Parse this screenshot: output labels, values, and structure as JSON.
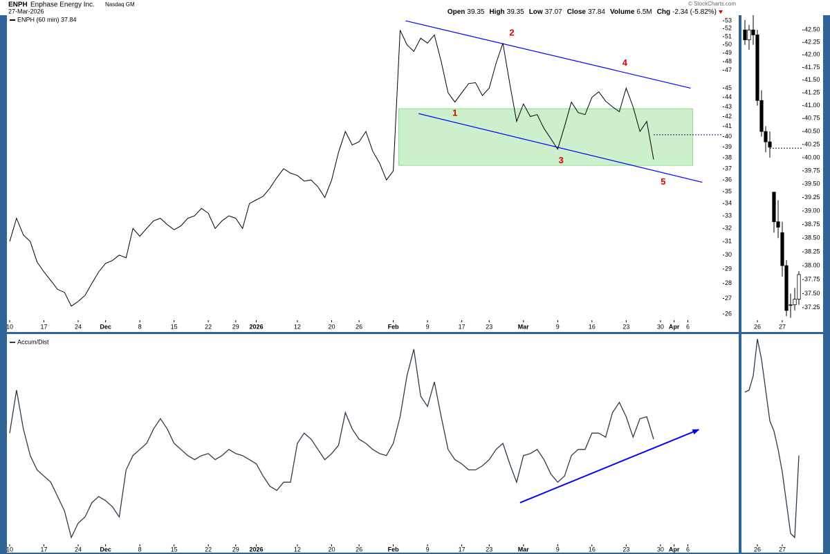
{
  "header": {
    "symbol": "ENPH",
    "name": "Enphase Energy Inc.",
    "exchange": "Nasdaq GM",
    "date": "27-Mar-2026",
    "copyright": "© StockCharts.com",
    "quote": [
      {
        "label": "Open",
        "value": "39.35"
      },
      {
        "label": "High",
        "value": "39.35"
      },
      {
        "label": "Low",
        "value": "37.07"
      },
      {
        "label": "Close",
        "value": "37.84"
      },
      {
        "label": "Volume",
        "value": "6.5M"
      },
      {
        "label": "Chg",
        "value": "-2.34 (-5.82%)"
      }
    ]
  },
  "chart_data": [
    {
      "type": "line",
      "log": true,
      "xlim": [
        -0.4,
        104.1
      ],
      "ylim": [
        25.65,
        53.54
      ],
      "x": [
        0,
        1,
        2,
        3,
        4,
        5,
        6,
        7,
        8,
        9,
        10,
        11,
        12,
        13,
        14,
        15,
        16,
        17,
        18,
        19,
        20,
        21,
        22,
        23,
        24,
        25,
        26,
        27,
        28,
        29,
        30,
        31,
        32,
        33,
        34,
        35,
        36,
        37,
        38,
        39,
        40,
        41,
        42,
        43,
        44,
        45,
        46,
        47,
        48,
        49,
        50,
        51,
        52,
        53,
        54,
        55,
        56,
        57,
        58,
        59,
        60,
        61,
        62,
        63,
        64,
        65,
        66,
        67,
        68,
        69,
        70,
        71,
        72,
        73,
        74,
        75,
        76,
        77,
        78,
        79,
        80,
        81,
        82,
        83,
        84,
        85,
        86,
        87,
        88,
        89,
        90,
        91,
        92,
        93,
        94
      ],
      "series": [
        {
          "name": "ENPH (60 min) 37.84",
          "color": "#000000",
          "values": [
            31.0,
            32.8,
            31.5,
            31.0,
            29.5,
            28.8,
            28.2,
            27.6,
            27.4,
            26.5,
            26.8,
            27.2,
            28.0,
            28.8,
            29.4,
            29.6,
            30.0,
            29.8,
            32.0,
            31.4,
            32.0,
            32.6,
            32.8,
            32.3,
            31.9,
            32.2,
            32.8,
            33.0,
            33.6,
            33.2,
            32.0,
            32.6,
            33.0,
            32.8,
            32.0,
            34.0,
            34.3,
            34.6,
            35.3,
            36.2,
            37.0,
            36.6,
            36.4,
            35.9,
            36.0,
            35.4,
            34.5,
            36.0,
            38.5,
            40.5,
            39.2,
            39.5,
            40.5,
            38.6,
            37.5,
            36.0,
            36.8,
            51.8,
            50.0,
            49.2,
            50.8,
            50.2,
            51.2,
            48.0,
            44.5,
            43.5,
            44.5,
            45.5,
            45.6,
            44.2,
            45.0,
            47.8,
            50.2,
            45.5,
            41.5,
            43.3,
            42.0,
            42.2,
            40.8,
            39.8,
            38.8,
            41.0,
            43.5,
            42.4,
            42.2,
            44.0,
            44.6,
            43.6,
            43.0,
            42.5,
            45.0,
            43.0,
            40.5,
            41.5,
            37.84
          ]
        }
      ],
      "xticks": [
        {
          "value": 0,
          "label": "10"
        },
        {
          "value": 5,
          "label": "17"
        },
        {
          "value": 10,
          "label": "24"
        },
        {
          "value": 14,
          "label": "Dec"
        },
        {
          "value": 19,
          "label": "8"
        },
        {
          "value": 24,
          "label": "15"
        },
        {
          "value": 29,
          "label": "22"
        },
        {
          "value": 33,
          "label": "29"
        },
        {
          "value": 36,
          "label": "2026"
        },
        {
          "value": 42,
          "label": "12"
        },
        {
          "value": 47,
          "label": "20"
        },
        {
          "value": 51,
          "label": "26"
        },
        {
          "value": 56,
          "label": "Feb"
        },
        {
          "value": 61,
          "label": "9"
        },
        {
          "value": 66,
          "label": "17"
        },
        {
          "value": 70,
          "label": "23"
        },
        {
          "value": 75,
          "label": "Mar"
        },
        {
          "value": 80,
          "label": "9"
        },
        {
          "value": 85,
          "label": "16"
        },
        {
          "value": 90,
          "label": "23"
        },
        {
          "value": 95,
          "label": "30"
        },
        {
          "value": 97,
          "label": "Apr"
        },
        {
          "value": 99,
          "label": "6"
        }
      ],
      "yticks": [
        26,
        27,
        28,
        29,
        30,
        31,
        32,
        33,
        34,
        35,
        36,
        37,
        38,
        39,
        40,
        41,
        42,
        43,
        44,
        45,
        47,
        48,
        49,
        50,
        51,
        52,
        53
      ],
      "annotations": [
        {
          "text": "1",
          "x": 65,
          "y": 42.3
        },
        {
          "text": "2",
          "x": 73.3,
          "y": 51.4
        },
        {
          "text": "3",
          "x": 80.5,
          "y": 37.7
        },
        {
          "text": "4",
          "x": 89.8,
          "y": 47.8
        },
        {
          "text": "5",
          "x": 95.4,
          "y": 35.8
        }
      ],
      "trendlines": [
        {
          "x": [
            57.8,
            99.4
          ],
          "y": [
            53,
            45.0
          ],
          "color": "#0000ff"
        },
        {
          "x": [
            59.7,
            101.1
          ],
          "y": [
            42.3,
            35.8
          ],
          "color": "#0000ff"
        }
      ],
      "zone": {
        "x": [
          56.8,
          99.7
        ],
        "y": [
          37.3,
          42.8
        ],
        "color": "#8fdc8f"
      },
      "reference": {
        "x": 94,
        "value": 40.18,
        "color": "#000080"
      }
    },
    {
      "type": "candlestick",
      "log": true,
      "xlim": [
        -0.83,
        13.83
      ],
      "ylim": [
        37.04,
        42.77
      ],
      "x": [
        0,
        1,
        2,
        3,
        4,
        5,
        6,
        7,
        8,
        9,
        10,
        11,
        12,
        13
      ],
      "open": [
        42.5,
        42.3,
        42.5,
        42.4,
        41.1,
        40.5,
        40.3,
        39.35,
        38.8,
        38.6,
        38.0,
        37.3,
        37.3,
        37.4
      ],
      "high": [
        42.7,
        42.6,
        42.8,
        42.5,
        41.3,
        40.6,
        40.5,
        39.35,
        39.2,
        38.8,
        38.1,
        37.5,
        37.6,
        37.9
      ],
      "low": [
        42.2,
        42.1,
        42.2,
        41.0,
        40.4,
        40.1,
        40.0,
        38.6,
        38.5,
        37.8,
        37.1,
        37.07,
        37.2,
        37.3
      ],
      "close": [
        42.3,
        42.5,
        42.4,
        41.1,
        40.5,
        40.3,
        40.2,
        38.8,
        38.7,
        38.0,
        37.2,
        37.3,
        37.4,
        37.84
      ],
      "color": "#000000",
      "xticks": [
        {
          "value": 3,
          "label": "26"
        },
        {
          "value": 9,
          "label": "27"
        }
      ],
      "yticks": [
        {
          "value": 42.5,
          "label": "42.50"
        },
        42.25,
        {
          "value": 42,
          "label": "42.00"
        },
        41.75,
        {
          "value": 41.5,
          "label": "41.50"
        },
        41.25,
        {
          "value": 41,
          "label": "41.00"
        },
        40.75,
        {
          "value": 40.5,
          "label": "40.50"
        },
        40.25,
        {
          "value": 40,
          "label": "40.00"
        },
        39.75,
        {
          "value": 39.5,
          "label": "39.50"
        },
        39.25,
        {
          "value": 39,
          "label": "39.00"
        },
        38.75,
        {
          "value": 38.5,
          "label": "38.50"
        },
        38.25,
        {
          "value": 38,
          "label": "38.00"
        },
        37.75,
        {
          "value": 37.5,
          "label": "37.50"
        },
        37.25
      ],
      "reference": {
        "x": 6,
        "value": 40.18,
        "color": "#000080"
      }
    },
    {
      "type": "line",
      "xlim": [
        -0.4,
        104.1
      ],
      "ylim": [
        0,
        100
      ],
      "x": [
        0,
        1,
        2,
        3,
        4,
        5,
        6,
        7,
        8,
        9,
        10,
        11,
        12,
        13,
        14,
        15,
        16,
        17,
        18,
        19,
        20,
        21,
        22,
        23,
        24,
        25,
        26,
        27,
        28,
        29,
        30,
        31,
        32,
        33,
        34,
        35,
        36,
        37,
        38,
        39,
        40,
        41,
        42,
        43,
        44,
        45,
        46,
        47,
        48,
        49,
        50,
        51,
        52,
        53,
        54,
        55,
        56,
        57,
        58,
        59,
        60,
        61,
        62,
        63,
        64,
        65,
        66,
        67,
        68,
        69,
        70,
        71,
        72,
        73,
        74,
        75,
        76,
        77,
        78,
        79,
        80,
        81,
        82,
        83,
        84,
        85,
        86,
        87,
        88,
        89,
        90,
        91,
        92,
        93,
        94
      ],
      "series": [
        {
          "name": "Accum/Dist",
          "color": "#2b3a4a",
          "values": [
            54,
            75,
            56,
            43,
            36,
            33,
            30,
            23,
            16,
            3,
            10,
            13,
            20,
            23,
            21,
            18,
            13,
            36,
            43,
            46,
            49,
            56,
            61,
            56,
            49,
            46,
            43,
            41,
            43,
            44,
            41,
            43,
            46,
            44,
            43,
            41,
            39,
            33,
            28,
            26,
            30,
            30,
            49,
            54,
            51,
            46,
            41,
            44,
            48,
            64,
            56,
            51,
            49,
            46,
            44,
            43,
            49,
            62,
            82,
            95,
            72,
            67,
            79,
            62,
            46,
            41,
            39,
            36,
            36,
            38,
            41,
            46,
            49,
            39,
            30,
            43,
            44,
            46,
            41,
            34,
            30,
            33,
            43,
            46,
            46,
            54,
            54,
            52,
            64,
            69,
            62,
            52,
            61,
            62,
            51
          ]
        }
      ],
      "xticks": [
        {
          "value": 0,
          "label": "10"
        },
        {
          "value": 5,
          "label": "17"
        },
        {
          "value": 10,
          "label": "24"
        },
        {
          "value": 14,
          "label": "Dec"
        },
        {
          "value": 19,
          "label": "8"
        },
        {
          "value": 24,
          "label": "15"
        },
        {
          "value": 29,
          "label": "22"
        },
        {
          "value": 33,
          "label": "29"
        },
        {
          "value": 36,
          "label": "2026"
        },
        {
          "value": 42,
          "label": "12"
        },
        {
          "value": 47,
          "label": "20"
        },
        {
          "value": 51,
          "label": "26"
        },
        {
          "value": 56,
          "label": "Feb"
        },
        {
          "value": 61,
          "label": "9"
        },
        {
          "value": 66,
          "label": "17"
        },
        {
          "value": 70,
          "label": "23"
        },
        {
          "value": 75,
          "label": "Mar"
        },
        {
          "value": 80,
          "label": "9"
        },
        {
          "value": 85,
          "label": "16"
        },
        {
          "value": 90,
          "label": "23"
        },
        {
          "value": 95,
          "label": "30"
        },
        {
          "value": 97,
          "label": "Apr"
        },
        {
          "value": 99,
          "label": "6"
        }
      ],
      "trendlines": [
        {
          "x": [
            74.5,
            100.6
          ],
          "y": [
            20,
            55.7
          ],
          "color": "#0000ff",
          "arrow": true
        }
      ]
    },
    {
      "type": "line",
      "xlim": [
        -0.83,
        13.83
      ],
      "ylim": [
        0,
        100
      ],
      "x": [
        0,
        1,
        2,
        3,
        4,
        5,
        6,
        7,
        8,
        9,
        10,
        11,
        12,
        13
      ],
      "series": [
        {
          "color": "#2b3a4a",
          "values": [
            74,
            75,
            82,
            100,
            90,
            75,
            60,
            55,
            46,
            35,
            20,
            5,
            3,
            43
          ]
        }
      ],
      "xticks": [
        {
          "value": 3,
          "label": "26"
        },
        {
          "value": 9,
          "label": "27"
        }
      ]
    }
  ]
}
